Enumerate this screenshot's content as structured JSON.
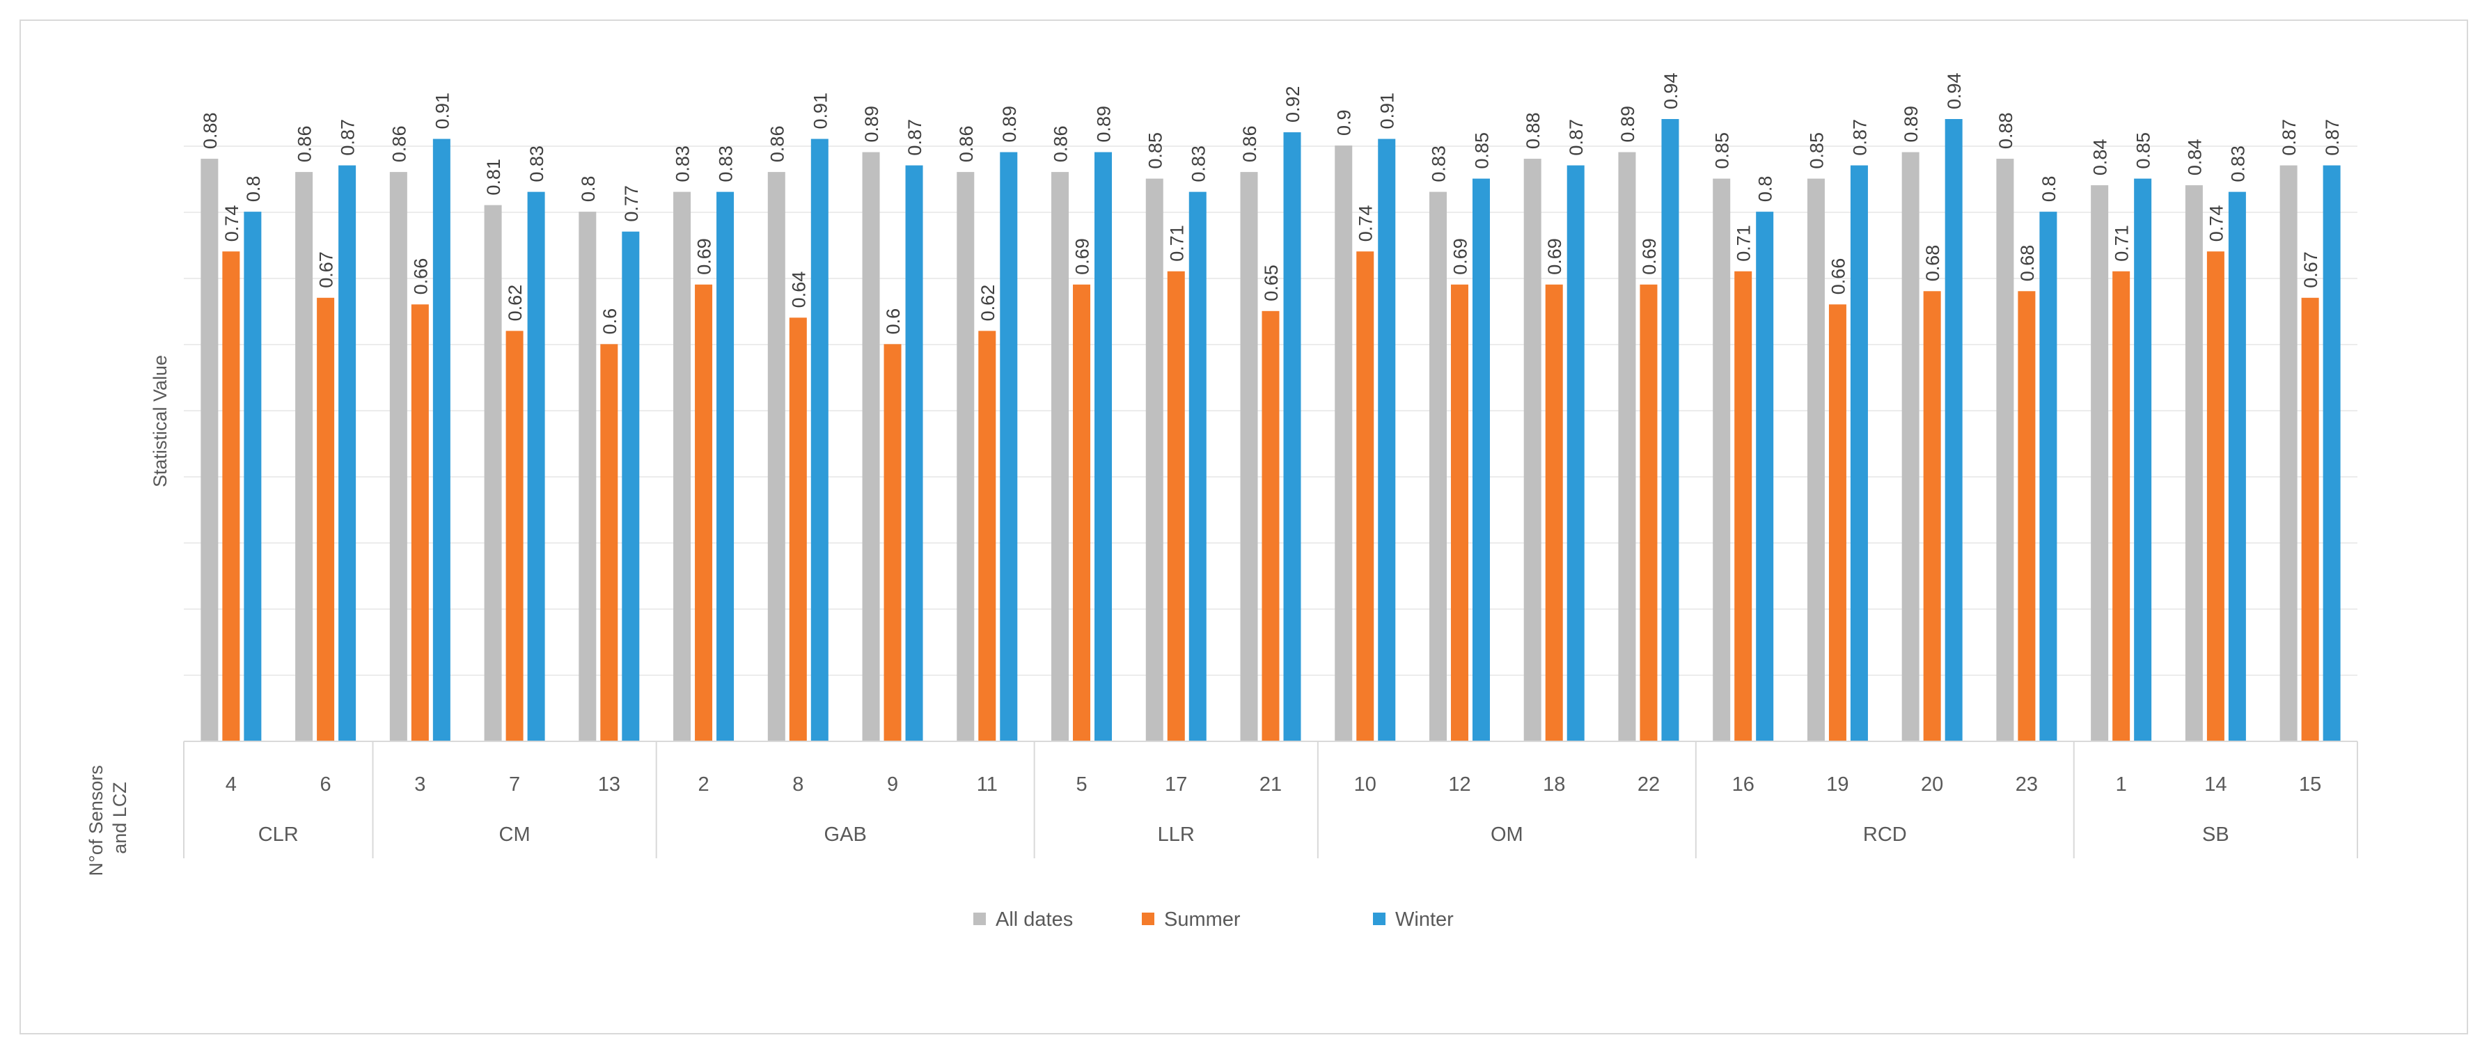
{
  "chart_data": {
    "type": "bar",
    "title": "",
    "ylabel": "Statistical Value",
    "xlabel": "N°of Sensors and LCZ",
    "ylabel_lines": [
      "N°of Sensors",
      "and LCZ"
    ],
    "ylim": [
      0,
      1
    ],
    "gridlines": true,
    "legend_position": "bottom",
    "groups": [
      {
        "name": "CLR",
        "sensors": [
          "4",
          "6"
        ]
      },
      {
        "name": "CM",
        "sensors": [
          "3",
          "7",
          "13"
        ]
      },
      {
        "name": "GAB",
        "sensors": [
          "2",
          "8",
          "9",
          "11"
        ]
      },
      {
        "name": "LLR",
        "sensors": [
          "5",
          "17",
          "21"
        ]
      },
      {
        "name": "OM",
        "sensors": [
          "10",
          "12",
          "18",
          "22"
        ]
      },
      {
        "name": "RCD",
        "sensors": [
          "16",
          "19",
          "20",
          "23"
        ]
      },
      {
        "name": "SB",
        "sensors": [
          "1",
          "14",
          "15"
        ]
      }
    ],
    "categories": [
      "4",
      "6",
      "3",
      "7",
      "13",
      "2",
      "8",
      "9",
      "11",
      "5",
      "17",
      "21",
      "10",
      "12",
      "18",
      "22",
      "16",
      "19",
      "20",
      "23",
      "1",
      "14",
      "15"
    ],
    "series": [
      {
        "name": "All dates",
        "color": "#BFBFBF",
        "values": [
          0.88,
          0.86,
          0.86,
          0.81,
          0.8,
          0.83,
          0.86,
          0.89,
          0.86,
          0.86,
          0.85,
          0.86,
          0.9,
          0.83,
          0.88,
          0.89,
          0.85,
          0.85,
          0.89,
          0.88,
          0.84,
          0.84,
          0.87
        ]
      },
      {
        "name": "Summer",
        "color": "#F47B2A",
        "values": [
          0.74,
          0.67,
          0.66,
          0.62,
          0.6,
          0.69,
          0.64,
          0.6,
          0.62,
          0.69,
          0.71,
          0.65,
          0.74,
          0.69,
          0.69,
          0.69,
          0.71,
          0.66,
          0.68,
          0.68,
          0.71,
          0.74,
          0.67
        ]
      },
      {
        "name": "Winter",
        "color": "#2E9BD8",
        "values": [
          0.8,
          0.87,
          0.91,
          0.83,
          0.77,
          0.83,
          0.91,
          0.87,
          0.89,
          0.89,
          0.83,
          0.92,
          0.91,
          0.85,
          0.87,
          0.94,
          0.8,
          0.87,
          0.94,
          0.8,
          0.85,
          0.83,
          0.87
        ]
      }
    ]
  }
}
